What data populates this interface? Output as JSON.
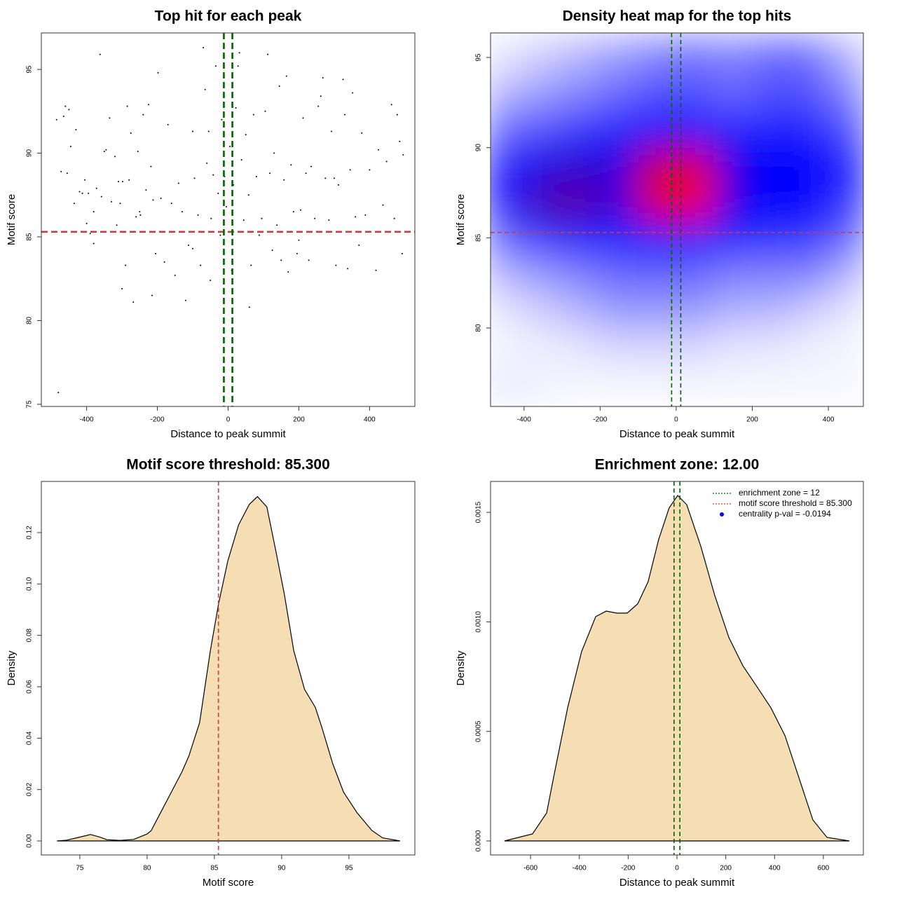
{
  "chart_data": [
    {
      "type": "scatter",
      "title": "Top hit for each peak",
      "xlabel": "Distance to peak summit",
      "ylabel": "Motif score",
      "xlim": [
        -528,
        528
      ],
      "ylim": [
        74.87,
        97.18
      ],
      "xticks": [
        -400,
        -200,
        0,
        200,
        400
      ],
      "yticks": [
        75,
        80,
        85,
        90,
        95
      ],
      "color": "#000000",
      "x": [
        -485,
        -472,
        -465,
        -460,
        -455,
        -450,
        -445,
        -435,
        -430,
        -420,
        -412,
        -405,
        -400,
        -395,
        -390,
        -380,
        -372,
        -362,
        -358,
        -350,
        -345,
        -335,
        -330,
        -320,
        -315,
        -310,
        -305,
        -298,
        -290,
        -285,
        -280,
        -275,
        -268,
        -260,
        -255,
        -248,
        -240,
        -232,
        -225,
        -218,
        -212,
        -205,
        -198,
        -190,
        -180,
        -170,
        -160,
        -150,
        -140,
        -130,
        -120,
        -112,
        -100,
        -95,
        -85,
        -78,
        -70,
        -65,
        -60,
        -55,
        -48,
        -42,
        -35,
        -28,
        -22,
        -18,
        -10,
        -5,
        5,
        10,
        15,
        22,
        28,
        32,
        38,
        44,
        50,
        58,
        65,
        72,
        80,
        88,
        95,
        105,
        112,
        118,
        125,
        130,
        138,
        145,
        150,
        158,
        165,
        170,
        178,
        185,
        195,
        205,
        212,
        220,
        228,
        235,
        245,
        255,
        262,
        268,
        275,
        285,
        292,
        300,
        305,
        312,
        325,
        330,
        338,
        345,
        352,
        360,
        370,
        378,
        388,
        400,
        418,
        425,
        438,
        448,
        462,
        470,
        478,
        485,
        492,
        495,
        -480,
        -300,
        -215,
        -50,
        60,
        -250,
        -380,
        -100,
        200
      ],
      "values": [
        92.0,
        88.9,
        92.2,
        92.8,
        88.8,
        92.6,
        90.4,
        87.0,
        91.4,
        87.7,
        87.6,
        88.4,
        85.8,
        87.6,
        85.2,
        86.5,
        87.9,
        95.9,
        87.4,
        90.1,
        90.2,
        92.1,
        87.1,
        89.8,
        85.7,
        88.3,
        87.0,
        88.3,
        83.3,
        92.8,
        88.4,
        91.2,
        81.1,
        86.2,
        90.1,
        86.3,
        92.3,
        87.8,
        92.9,
        89.2,
        87.2,
        84.0,
        94.8,
        87.3,
        83.5,
        91.7,
        87.0,
        82.7,
        88.2,
        86.5,
        81.2,
        84.5,
        91.3,
        88.5,
        86.3,
        83.3,
        96.3,
        93.8,
        89.4,
        91.3,
        86.1,
        88.7,
        95.2,
        87.6,
        85.1,
        92.0,
        88.6,
        86.8,
        90.4,
        83.0,
        88.1,
        92.7,
        95.2,
        96.0,
        89.6,
        86.0,
        91.1,
        87.5,
        83.3,
        92.3,
        88.6,
        85.1,
        86.1,
        92.5,
        95.9,
        88.8,
        84.2,
        90.0,
        85.7,
        94.0,
        83.6,
        88.4,
        94.6,
        82.9,
        89.3,
        86.5,
        84.0,
        86.6,
        92.1,
        88.8,
        83.6,
        89.2,
        86.1,
        92.8,
        93.4,
        94.5,
        88.5,
        86.0,
        91.3,
        88.5,
        83.3,
        88.1,
        94.4,
        92.3,
        83.1,
        89.0,
        93.6,
        86.2,
        84.5,
        91.2,
        86.3,
        89.0,
        83.0,
        90.2,
        86.9,
        89.5,
        92.9,
        86.1,
        92.3,
        90.7,
        84.0,
        89.9,
        75.7,
        81.9,
        81.5,
        82.4,
        80.8,
        86.5,
        84.6,
        84.3,
        84.8
      ],
      "hlines": [
        {
          "value": 85.3,
          "color": "#dd3333"
        }
      ],
      "vlines": [
        {
          "value": -12,
          "color": "#006400"
        },
        {
          "value": 12,
          "color": "#006400"
        }
      ]
    },
    {
      "type": "heatmap",
      "title": "Density heat map for the top hits",
      "xlabel": "Distance to peak summit",
      "ylabel": "Motif score",
      "xlim": [
        -488,
        492
      ],
      "ylim": [
        75.65,
        96.36
      ],
      "xticks": [
        -400,
        -200,
        0,
        200,
        400
      ],
      "yticks": [
        80,
        85,
        90,
        95
      ],
      "colorscale": [
        "#ffffff",
        "#0000ff",
        "#ff0000"
      ],
      "x": [
        -450,
        -350,
        -250,
        -150,
        -50,
        50,
        150,
        250,
        350,
        450
      ],
      "y": [
        77,
        79,
        81,
        83,
        85,
        87,
        89,
        91,
        93,
        95
      ],
      "z": [
        [
          0.05,
          0.03,
          0.02,
          0.02,
          0.02,
          0.02,
          0.02,
          0.02,
          0.02,
          0.02
        ],
        [
          0.02,
          0.03,
          0.05,
          0.08,
          0.08,
          0.08,
          0.05,
          0.05,
          0.03,
          0.02
        ],
        [
          0.05,
          0.1,
          0.15,
          0.2,
          0.2,
          0.2,
          0.15,
          0.15,
          0.1,
          0.05
        ],
        [
          0.15,
          0.2,
          0.25,
          0.3,
          0.3,
          0.3,
          0.25,
          0.25,
          0.25,
          0.15
        ],
        [
          0.3,
          0.4,
          0.45,
          0.45,
          0.5,
          0.5,
          0.45,
          0.4,
          0.4,
          0.3
        ],
        [
          0.45,
          0.65,
          0.7,
          0.55,
          0.95,
          1.0,
          0.55,
          0.5,
          0.5,
          0.4
        ],
        [
          0.45,
          0.55,
          0.6,
          0.55,
          0.9,
          0.95,
          0.55,
          0.5,
          0.5,
          0.45
        ],
        [
          0.3,
          0.35,
          0.4,
          0.45,
          0.5,
          0.5,
          0.45,
          0.45,
          0.45,
          0.35
        ],
        [
          0.15,
          0.2,
          0.25,
          0.3,
          0.35,
          0.35,
          0.3,
          0.35,
          0.35,
          0.25
        ],
        [
          0.05,
          0.1,
          0.15,
          0.2,
          0.25,
          0.28,
          0.25,
          0.3,
          0.3,
          0.15
        ]
      ],
      "hlines": [
        {
          "value": 85.3,
          "color": "#dd3333"
        }
      ],
      "vlines": [
        {
          "value": -12,
          "color": "#006400"
        },
        {
          "value": 12,
          "color": "#006400"
        }
      ]
    },
    {
      "type": "area",
      "title": "Motif score threshold: 85.300",
      "xlabel": "Motif score",
      "ylabel": "Density",
      "xlim": [
        72.14,
        99.9
      ],
      "ylim": [
        -0.00545,
        0.1399
      ],
      "xticks": [
        75,
        80,
        85,
        90,
        95
      ],
      "yticks": [
        {
          "value": 0,
          "label": "0.00"
        },
        0.02,
        0.04,
        0.06,
        0.08,
        {
          "value": 0.1,
          "label": "0.10"
        },
        0.12
      ],
      "color": "#f5deb3",
      "line_color": "#000000",
      "x": [
        73.3,
        74,
        75,
        75.8,
        76.5,
        77,
        78,
        79,
        80,
        80.3,
        81,
        81.8,
        82.6,
        83.1,
        83.9,
        84.7,
        85.3,
        86,
        86.8,
        87.6,
        88.2,
        88.9,
        89.6,
        90.2,
        90.9,
        91.7,
        92.5,
        93,
        93.8,
        94.6,
        95.6,
        96.7,
        97.5,
        98.8
      ],
      "values": [
        0,
        0.0003,
        0.0015,
        0.0025,
        0.0015,
        0.0005,
        0.0002,
        0.0006,
        0.0027,
        0.004,
        0.011,
        0.019,
        0.027,
        0.033,
        0.046,
        0.074,
        0.092,
        0.109,
        0.123,
        0.131,
        0.134,
        0.13,
        0.112,
        0.096,
        0.074,
        0.059,
        0.052,
        0.044,
        0.03,
        0.019,
        0.011,
        0.0041,
        0.0012,
        0
      ],
      "vlines": [
        {
          "value": 85.3,
          "color": "#dd3333"
        }
      ]
    },
    {
      "type": "area",
      "title": "Enrichment zone: 12.00",
      "xlabel": "Distance to peak summit",
      "ylabel": "Density",
      "xlim": [
        -764,
        764
      ],
      "ylim": [
        -6.4e-05,
        0.001641
      ],
      "xticks": [
        -600,
        -400,
        -200,
        0,
        200,
        400,
        600
      ],
      "yticks": [
        {
          "value": 0,
          "label": "0.0000"
        },
        {
          "value": 0.0005,
          "label": "0.0005"
        },
        {
          "value": 0.001,
          "label": "0.0010"
        },
        {
          "value": 0.0015,
          "label": "0.0015"
        }
      ],
      "color": "#f5deb3",
      "line_color": "#000000",
      "x": [
        -707,
        -592,
        -534,
        -506,
        -448,
        -391,
        -333,
        -290,
        -247,
        -204,
        -161,
        -118,
        -75,
        -32,
        3,
        40,
        98,
        155,
        213,
        270,
        328,
        385,
        443,
        500,
        557,
        615,
        707
      ],
      "values": [
        0,
        3.2e-05,
        0.000128,
        0.000288,
        0.000608,
        0.000864,
        0.001024,
        0.001049,
        0.00104,
        0.00104,
        0.001082,
        0.001184,
        0.001376,
        0.00152,
        0.001577,
        0.001535,
        0.001344,
        0.00112,
        0.000928,
        0.0008,
        0.000704,
        0.000608,
        0.00048,
        0.000288,
        9.6e-05,
        1.6e-05,
        0
      ],
      "vlines": [
        {
          "value": -12,
          "color": "#006400"
        },
        {
          "value": 12,
          "color": "#006400"
        }
      ],
      "legend_position": "top-right",
      "legend": [
        {
          "name": "enrichment zone = 12",
          "color": "#006400",
          "symbol": "line"
        },
        {
          "name": "motif score threshold = 85.300",
          "color": "#dd3333",
          "symbol": "line"
        },
        {
          "name": "centrality p-val = -0.0194",
          "color": "#0000ff",
          "symbol": "point"
        }
      ]
    }
  ]
}
